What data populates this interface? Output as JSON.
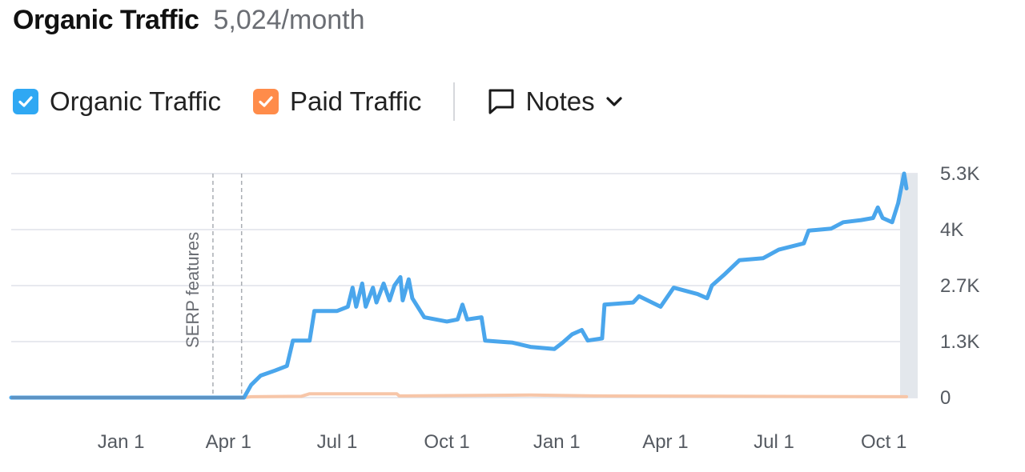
{
  "header": {
    "title": "Organic Traffic",
    "subtitle": "5,024/month"
  },
  "legend": {
    "organic": {
      "label": "Organic Traffic",
      "color": "#2fa8f3",
      "checked": true
    },
    "paid": {
      "label": "Paid Traffic",
      "color": "#ff8c4a",
      "checked": true
    },
    "notes": {
      "label": "Notes"
    }
  },
  "icons": {
    "notes": "speech-bubble-icon",
    "dropdown": "chevron-down-icon",
    "check": "check-icon"
  },
  "chart_data": {
    "type": "line",
    "x_ticks": [
      "Jan 1",
      "Apr 1",
      "Jul 1",
      "Oct 1",
      "Jan 1",
      "Apr 1",
      "Jul 1",
      "Oct 1"
    ],
    "y_ticks": [
      "0",
      "1.3K",
      "2.7K",
      "4K",
      "5.3K"
    ],
    "ylim": [
      0,
      5300
    ],
    "grid": true,
    "annotations": [
      {
        "label": "SERP features"
      }
    ],
    "series": [
      {
        "name": "Organic Traffic",
        "color": "#4aa6ec",
        "points": [
          [
            "2022-10-01",
            0
          ],
          [
            "2023-01-01",
            0
          ],
          [
            "2023-03-15",
            0
          ],
          [
            "2023-04-14",
            0
          ],
          [
            "2023-04-20",
            300
          ],
          [
            "2023-04-28",
            520
          ],
          [
            "2023-05-10",
            640
          ],
          [
            "2023-05-20",
            750
          ],
          [
            "2023-05-25",
            1350
          ],
          [
            "2023-06-08",
            1350
          ],
          [
            "2023-06-12",
            2050
          ],
          [
            "2023-07-01",
            2050
          ],
          [
            "2023-07-10",
            2150
          ],
          [
            "2023-07-14",
            2600
          ],
          [
            "2023-07-17",
            2150
          ],
          [
            "2023-07-22",
            2700
          ],
          [
            "2023-07-25",
            2150
          ],
          [
            "2023-07-31",
            2600
          ],
          [
            "2023-08-03",
            2250
          ],
          [
            "2023-08-09",
            2700
          ],
          [
            "2023-08-14",
            2300
          ],
          [
            "2023-08-18",
            2650
          ],
          [
            "2023-08-23",
            2850
          ],
          [
            "2023-08-25",
            2300
          ],
          [
            "2023-08-30",
            2800
          ],
          [
            "2023-09-02",
            2350
          ],
          [
            "2023-09-12",
            1900
          ],
          [
            "2023-10-01",
            1800
          ],
          [
            "2023-10-10",
            1850
          ],
          [
            "2023-10-14",
            2200
          ],
          [
            "2023-10-18",
            1850
          ],
          [
            "2023-10-30",
            1900
          ],
          [
            "2023-11-02",
            1350
          ],
          [
            "2023-11-25",
            1300
          ],
          [
            "2023-12-10",
            1200
          ],
          [
            "2023-12-30",
            1150
          ],
          [
            "2024-01-06",
            1300
          ],
          [
            "2024-01-14",
            1500
          ],
          [
            "2024-01-22",
            1600
          ],
          [
            "2024-01-27",
            1350
          ],
          [
            "2024-02-08",
            1400
          ],
          [
            "2024-02-10",
            2200
          ],
          [
            "2024-03-05",
            2250
          ],
          [
            "2024-03-10",
            2400
          ],
          [
            "2024-03-28",
            2150
          ],
          [
            "2024-04-08",
            2600
          ],
          [
            "2024-04-28",
            2450
          ],
          [
            "2024-05-06",
            2350
          ],
          [
            "2024-05-10",
            2650
          ],
          [
            "2024-05-20",
            2900
          ],
          [
            "2024-06-02",
            3250
          ],
          [
            "2024-06-22",
            3300
          ],
          [
            "2024-07-05",
            3500
          ],
          [
            "2024-07-26",
            3650
          ],
          [
            "2024-07-30",
            3950
          ],
          [
            "2024-08-18",
            4000
          ],
          [
            "2024-08-28",
            4150
          ],
          [
            "2024-09-12",
            4200
          ],
          [
            "2024-09-22",
            4250
          ],
          [
            "2024-09-26",
            4500
          ],
          [
            "2024-09-30",
            4250
          ],
          [
            "2024-10-08",
            4150
          ],
          [
            "2024-10-13",
            4600
          ],
          [
            "2024-10-18",
            5300
          ],
          [
            "2024-10-20",
            4950
          ]
        ]
      },
      {
        "name": "Paid Traffic",
        "color": "#f7c6a8",
        "points": [
          [
            "2022-10-01",
            0
          ],
          [
            "2023-04-14",
            0
          ],
          [
            "2023-04-20",
            20
          ],
          [
            "2023-06-01",
            30
          ],
          [
            "2023-06-08",
            90
          ],
          [
            "2023-08-20",
            90
          ],
          [
            "2023-08-22",
            40
          ],
          [
            "2023-12-10",
            60
          ],
          [
            "2024-02-01",
            40
          ],
          [
            "2024-10-20",
            20
          ]
        ]
      }
    ]
  }
}
